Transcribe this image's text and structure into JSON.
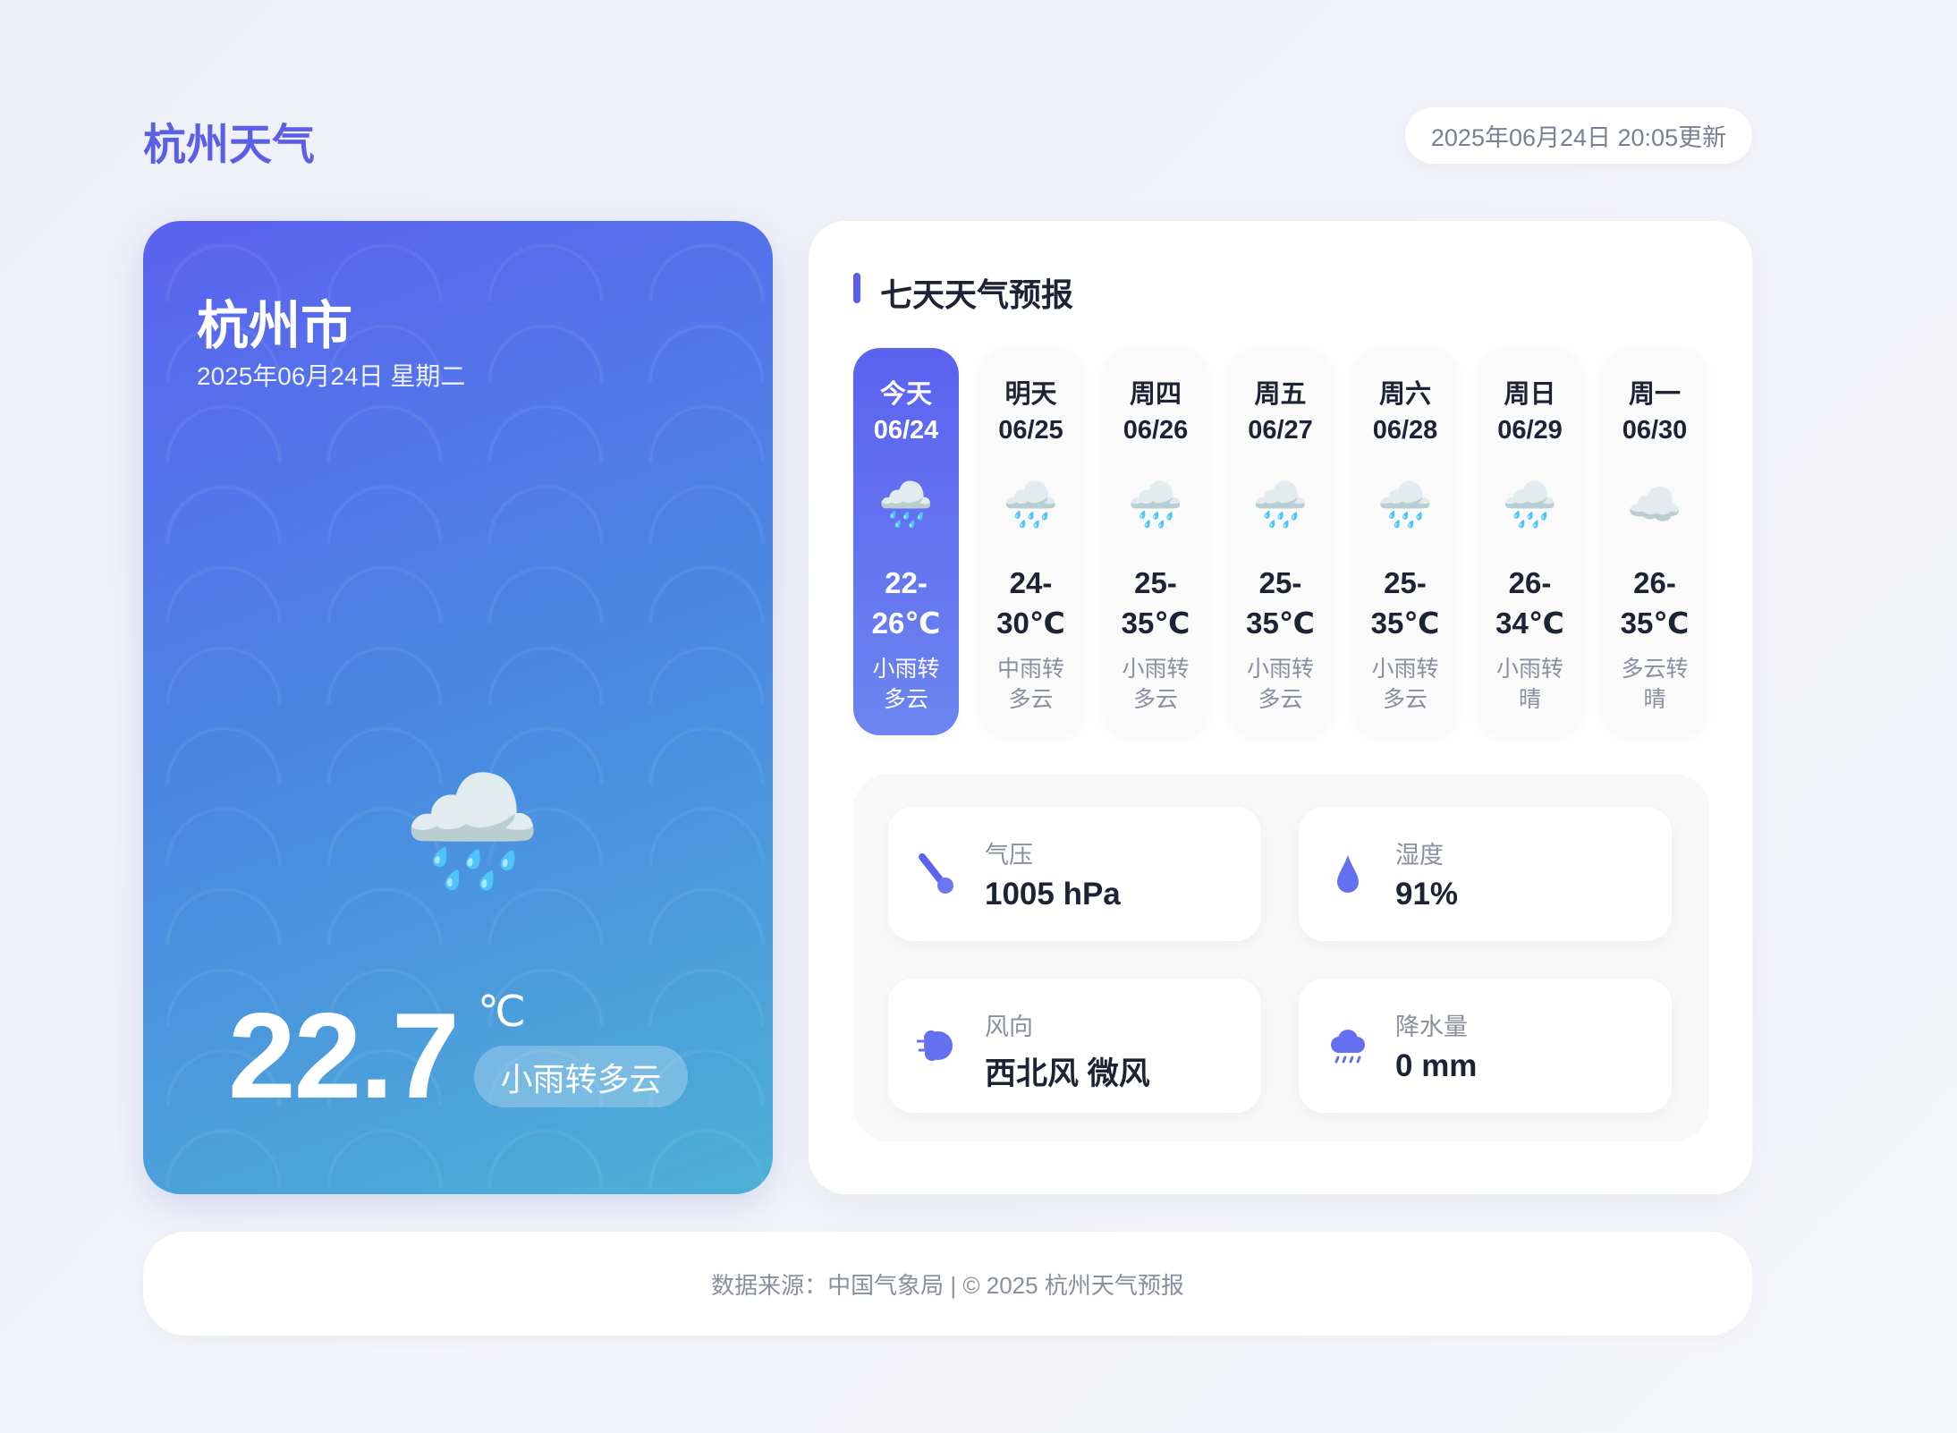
{
  "header": {
    "title": "杭州天气",
    "updated": "2025年06月24日 20:05更新"
  },
  "current": {
    "city": "杭州市",
    "date": "2025年06月24日 星期二",
    "icon": "rain-cloud-icon",
    "icon_glyph": "🌧️",
    "temperature": "22.7",
    "unit": "℃",
    "condition": "小雨转多云"
  },
  "forecast": {
    "title": "七天天气预报",
    "days": [
      {
        "name": "今天",
        "date": "06/24",
        "icon": "🌧️",
        "temp": "22-26℃",
        "desc": "小雨转多云",
        "selected": true
      },
      {
        "name": "明天",
        "date": "06/25",
        "icon": "🌧️",
        "temp": "24-30℃",
        "desc": "中雨转多云"
      },
      {
        "name": "周四",
        "date": "06/26",
        "icon": "🌧️",
        "temp": "25-35℃",
        "desc": "小雨转多云"
      },
      {
        "name": "周五",
        "date": "06/27",
        "icon": "🌧️",
        "temp": "25-35℃",
        "desc": "小雨转多云"
      },
      {
        "name": "周六",
        "date": "06/28",
        "icon": "🌧️",
        "temp": "25-35℃",
        "desc": "小雨转多云"
      },
      {
        "name": "周日",
        "date": "06/29",
        "icon": "🌧️",
        "temp": "26-34℃",
        "desc": "小雨转晴"
      },
      {
        "name": "周一",
        "date": "06/30",
        "icon": "☁️",
        "temp": "26-35℃",
        "desc": "多云转晴"
      }
    ]
  },
  "details": [
    {
      "label": "气压",
      "value": "1005 hPa",
      "icon": "thermometer-icon"
    },
    {
      "label": "湿度",
      "value": "91%",
      "icon": "droplet-icon"
    },
    {
      "label": "风向",
      "value": "西北风 微风",
      "icon": "wind-icon"
    },
    {
      "label": "降水量",
      "value": "0 mm",
      "icon": "rain-cloud-icon"
    }
  ],
  "footer": {
    "text": "数据来源：中国气象局 | © 2025 杭州天气预报"
  },
  "colors": {
    "accent": "#5a5fe6",
    "card_gradient_start": "#5b62f0",
    "card_gradient_end": "#4db0d6"
  }
}
